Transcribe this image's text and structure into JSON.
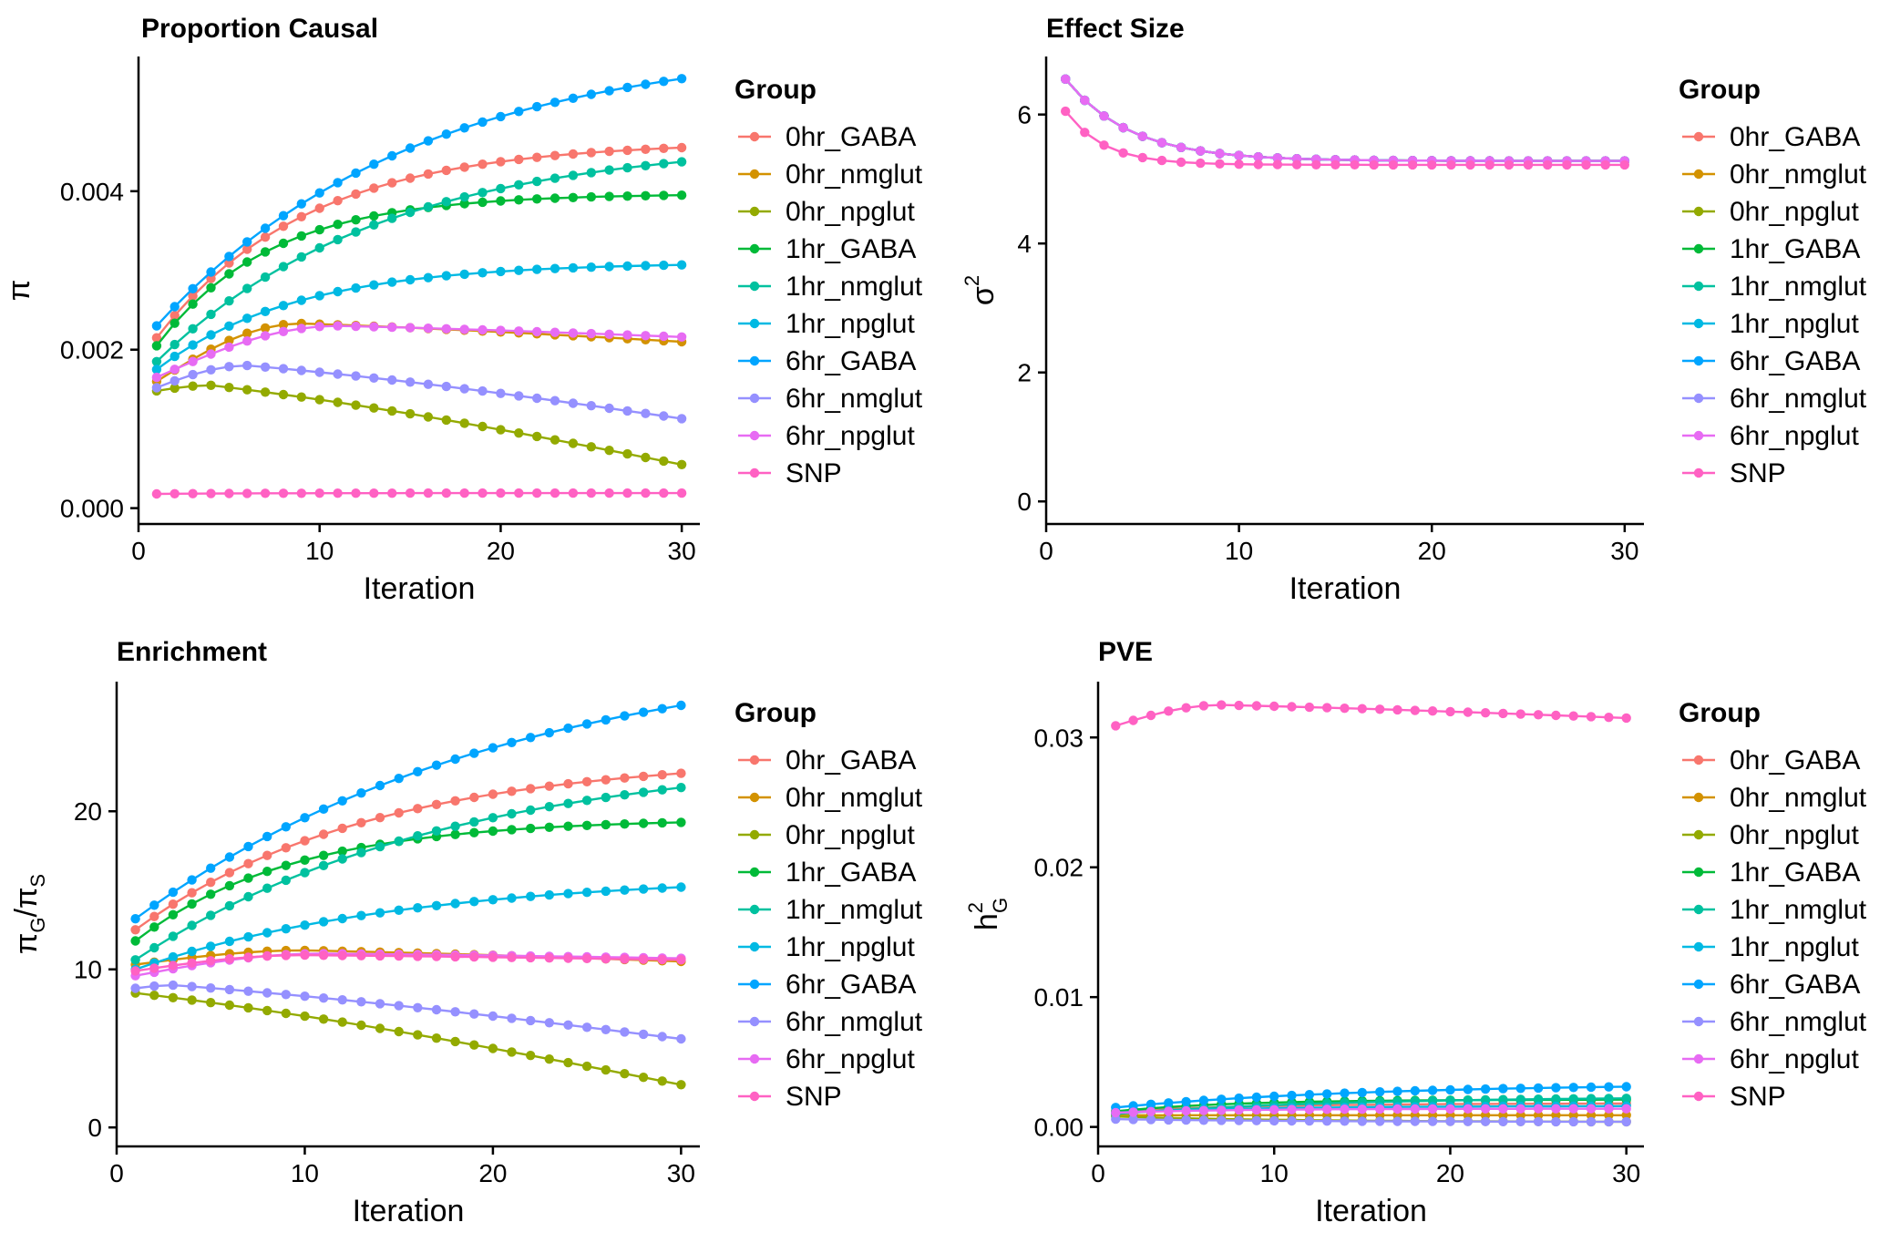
{
  "legend_title": "Group",
  "groups": [
    {
      "name": "0hr_GABA",
      "color": "#F8766D"
    },
    {
      "name": "0hr_nmglut",
      "color": "#D39200"
    },
    {
      "name": "0hr_npglut",
      "color": "#93AA00"
    },
    {
      "name": "1hr_GABA",
      "color": "#00BA38"
    },
    {
      "name": "1hr_nmglut",
      "color": "#00C19F"
    },
    {
      "name": "1hr_npglut",
      "color": "#00B9E3"
    },
    {
      "name": "6hr_GABA",
      "color": "#00A5FF"
    },
    {
      "name": "6hr_nmglut",
      "color": "#9590FF"
    },
    {
      "name": "6hr_npglut",
      "color": "#E76BF3"
    },
    {
      "name": "SNP",
      "color": "#FF61C3"
    }
  ],
  "chart_data": [
    {
      "type": "line",
      "title": "Proportion Causal",
      "xlabel": "Iteration",
      "ylabel": "π",
      "xlim": [
        0,
        31
      ],
      "ylim": [
        -0.0002,
        0.0057
      ],
      "xticks": [
        0,
        10,
        20,
        30
      ],
      "xtick_labels": [
        "0",
        "10",
        "20",
        "30"
      ],
      "yticks": [
        0,
        0.002,
        0.004
      ],
      "ytick_labels": [
        "0.000",
        "0.002",
        "0.004"
      ],
      "grid": false,
      "legend": "right",
      "series": [
        {
          "name": "0hr_GABA",
          "start": 0.00215,
          "end": 0.00455,
          "k": 0.12
        },
        {
          "name": "0hr_nmglut",
          "start": 0.0016,
          "end": 0.0021,
          "peak": 0.00233,
          "peak_x": 9
        },
        {
          "name": "0hr_npglut",
          "start": 0.00148,
          "end": 0.00055,
          "peak": 0.00155,
          "peak_x": 4
        },
        {
          "name": "1hr_GABA",
          "start": 0.00205,
          "end": 0.00395,
          "k": 0.16
        },
        {
          "name": "1hr_nmglut",
          "start": 0.00185,
          "end": 0.00437,
          "k": 0.08
        },
        {
          "name": "1hr_npglut",
          "start": 0.00175,
          "end": 0.00307,
          "k": 0.13
        },
        {
          "name": "6hr_GABA",
          "start": 0.0023,
          "end": 0.00542,
          "k": 0.07
        },
        {
          "name": "6hr_nmglut",
          "start": 0.00152,
          "end": 0.00113,
          "peak": 0.0018,
          "peak_x": 6
        },
        {
          "name": "6hr_npglut",
          "start": 0.00165,
          "end": 0.00216,
          "peak": 0.0023,
          "peak_x": 11
        },
        {
          "name": "SNP",
          "start": 0.00018,
          "end": 0.00019,
          "k": 0.2
        }
      ]
    },
    {
      "type": "line",
      "title": "Effect Size",
      "xlabel": "Iteration",
      "ylabel": "σ2",
      "xlim": [
        0,
        31
      ],
      "ylim": [
        -0.35,
        6.9
      ],
      "xticks": [
        0,
        10,
        20,
        30
      ],
      "xtick_labels": [
        "0",
        "10",
        "20",
        "30"
      ],
      "yticks": [
        0,
        2,
        4,
        6
      ],
      "ytick_labels": [
        "0",
        "2",
        "4",
        "6"
      ],
      "grid": false,
      "legend": "right",
      "series": [
        {
          "name": "0hr_GABA",
          "start": 6.55,
          "end": 5.28,
          "k": 0.3
        },
        {
          "name": "0hr_nmglut",
          "start": 6.55,
          "end": 5.28,
          "k": 0.3
        },
        {
          "name": "0hr_npglut",
          "start": 6.55,
          "end": 5.28,
          "k": 0.3
        },
        {
          "name": "1hr_GABA",
          "start": 6.55,
          "end": 5.28,
          "k": 0.3
        },
        {
          "name": "1hr_nmglut",
          "start": 6.55,
          "end": 5.28,
          "k": 0.3
        },
        {
          "name": "1hr_npglut",
          "start": 6.55,
          "end": 5.28,
          "k": 0.3
        },
        {
          "name": "6hr_GABA",
          "start": 6.55,
          "end": 5.28,
          "k": 0.3
        },
        {
          "name": "6hr_nmglut",
          "start": 6.55,
          "end": 5.28,
          "k": 0.3
        },
        {
          "name": "6hr_npglut",
          "start": 6.55,
          "end": 5.28,
          "k": 0.3
        },
        {
          "name": "SNP",
          "start": 6.05,
          "end": 5.22,
          "k": 0.5
        }
      ]
    },
    {
      "type": "line",
      "title": "Enrichment",
      "xlabel": "Iteration",
      "ylabel": "πG/πS",
      "xlim": [
        0,
        31
      ],
      "ylim": [
        -1.2,
        28.2
      ],
      "xticks": [
        0,
        10,
        20,
        30
      ],
      "xtick_labels": [
        "0",
        "10",
        "20",
        "30"
      ],
      "yticks": [
        0,
        10,
        20
      ],
      "ytick_labels": [
        "0",
        "10",
        "20"
      ],
      "grid": false,
      "legend": "right",
      "series": [
        {
          "name": "0hr_GABA",
          "start": 12.5,
          "end": 22.4,
          "k": 0.08
        },
        {
          "name": "0hr_nmglut",
          "start": 10.3,
          "end": 10.5,
          "peak": 11.2,
          "peak_x": 10
        },
        {
          "name": "0hr_npglut",
          "start": 8.5,
          "end": 2.7,
          "peak": 8.5,
          "peak_x": 1
        },
        {
          "name": "1hr_GABA",
          "start": 11.8,
          "end": 19.3,
          "k": 0.12
        },
        {
          "name": "1hr_nmglut",
          "start": 10.6,
          "end": 21.5,
          "k": 0.06
        },
        {
          "name": "1hr_npglut",
          "start": 10.0,
          "end": 15.2,
          "k": 0.07
        },
        {
          "name": "6hr_GABA",
          "start": 13.2,
          "end": 26.7,
          "k": 0.05
        },
        {
          "name": "6hr_nmglut",
          "start": 8.8,
          "end": 5.6,
          "peak": 9.0,
          "peak_x": 3
        },
        {
          "name": "6hr_npglut",
          "start": 9.6,
          "end": 10.7,
          "peak": 11.0,
          "peak_x": 11
        },
        {
          "name": "SNP",
          "start": 9.9,
          "end": 10.6,
          "peak": 10.9,
          "peak_x": 10
        }
      ]
    },
    {
      "type": "line",
      "title": "PVE",
      "xlabel": "Iteration",
      "ylabel": "hG2",
      "xlim": [
        0,
        31
      ],
      "ylim": [
        -0.0015,
        0.0343
      ],
      "xticks": [
        0,
        10,
        20,
        30
      ],
      "xtick_labels": [
        "0",
        "10",
        "20",
        "30"
      ],
      "yticks": [
        0,
        0.01,
        0.02,
        0.03
      ],
      "ytick_labels": [
        "0.00",
        "0.01",
        "0.02",
        "0.03"
      ],
      "grid": false,
      "legend": "right",
      "series": [
        {
          "name": "0hr_GABA",
          "start": 0.0012,
          "end": 0.0018,
          "k": 0.12
        },
        {
          "name": "0hr_nmglut",
          "start": 0.0009,
          "end": 0.0009,
          "k": 0.1
        },
        {
          "name": "0hr_npglut",
          "start": 0.0008,
          "end": 0.0004,
          "k": 0.1
        },
        {
          "name": "1hr_GABA",
          "start": 0.0012,
          "end": 0.0021,
          "k": 0.15
        },
        {
          "name": "1hr_nmglut",
          "start": 0.001,
          "end": 0.0022,
          "k": 0.08
        },
        {
          "name": "1hr_npglut",
          "start": 0.0011,
          "end": 0.0016,
          "k": 0.12
        },
        {
          "name": "6hr_GABA",
          "start": 0.0015,
          "end": 0.0031,
          "k": 0.07
        },
        {
          "name": "6hr_nmglut",
          "start": 0.0006,
          "end": 0.0004,
          "k": 0.1
        },
        {
          "name": "6hr_npglut",
          "start": 0.0011,
          "end": 0.0014,
          "k": 0.15
        },
        {
          "name": "SNP",
          "start": 0.0309,
          "end": 0.0315,
          "peak": 0.0325,
          "peak_x": 7
        }
      ]
    }
  ]
}
